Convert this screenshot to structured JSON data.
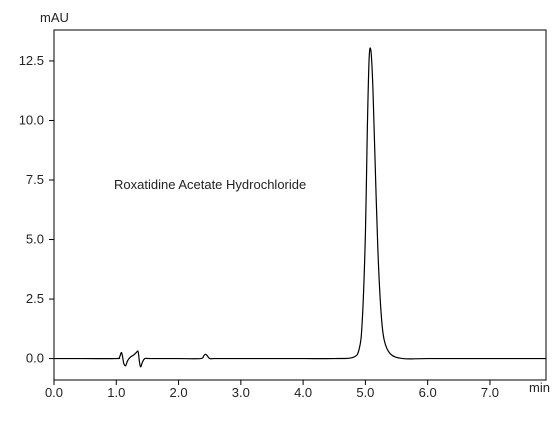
{
  "chart_data": {
    "type": "line",
    "y_unit": "mAU",
    "x_unit": "min",
    "xlim": [
      0.0,
      7.9
    ],
    "ylim": [
      -0.9,
      13.8
    ],
    "x_ticks": [
      0.0,
      1.0,
      2.0,
      3.0,
      4.0,
      5.0,
      6.0,
      7.0
    ],
    "x_tick_labels": [
      "0.0",
      "1.0",
      "2.0",
      "3.0",
      "4.0",
      "5.0",
      "6.0",
      "7.0"
    ],
    "y_ticks": [
      0.0,
      2.5,
      5.0,
      7.5,
      10.0,
      12.5
    ],
    "y_tick_labels": [
      "0.0",
      "2.5",
      "5.0",
      "7.5",
      "10.0",
      "12.5"
    ],
    "grid": false,
    "annotation": "Roxatidine Acetate Hydrochloride",
    "series": [
      {
        "color": "#000000",
        "x": [
          0.0,
          0.5,
          1.0,
          1.05,
          1.08,
          1.1,
          1.12,
          1.15,
          1.18,
          1.22,
          1.28,
          1.32,
          1.35,
          1.37,
          1.39,
          1.42,
          1.46,
          1.55,
          2.0,
          2.35,
          2.4,
          2.43,
          2.46,
          2.5,
          2.58,
          3.0,
          3.5,
          4.0,
          4.5,
          4.8,
          4.9,
          4.95,
          5.0,
          5.03,
          5.06,
          5.09,
          5.12,
          5.15,
          5.2,
          5.25,
          5.3,
          5.4,
          5.6,
          6.0,
          7.0,
          7.9
        ],
        "y": [
          0.0,
          0.0,
          0.0,
          0.05,
          0.25,
          0.1,
          -0.2,
          -0.3,
          -0.1,
          0.05,
          0.15,
          0.25,
          0.3,
          -0.1,
          -0.35,
          -0.15,
          0.0,
          0.0,
          0.0,
          0.0,
          0.1,
          0.18,
          0.12,
          0.0,
          0.0,
          0.0,
          0.0,
          0.0,
          0.0,
          0.05,
          0.4,
          1.6,
          5.2,
          9.5,
          12.6,
          12.9,
          11.4,
          8.8,
          4.6,
          2.0,
          0.8,
          0.2,
          0.0,
          0.0,
          0.0,
          0.0
        ]
      }
    ]
  }
}
